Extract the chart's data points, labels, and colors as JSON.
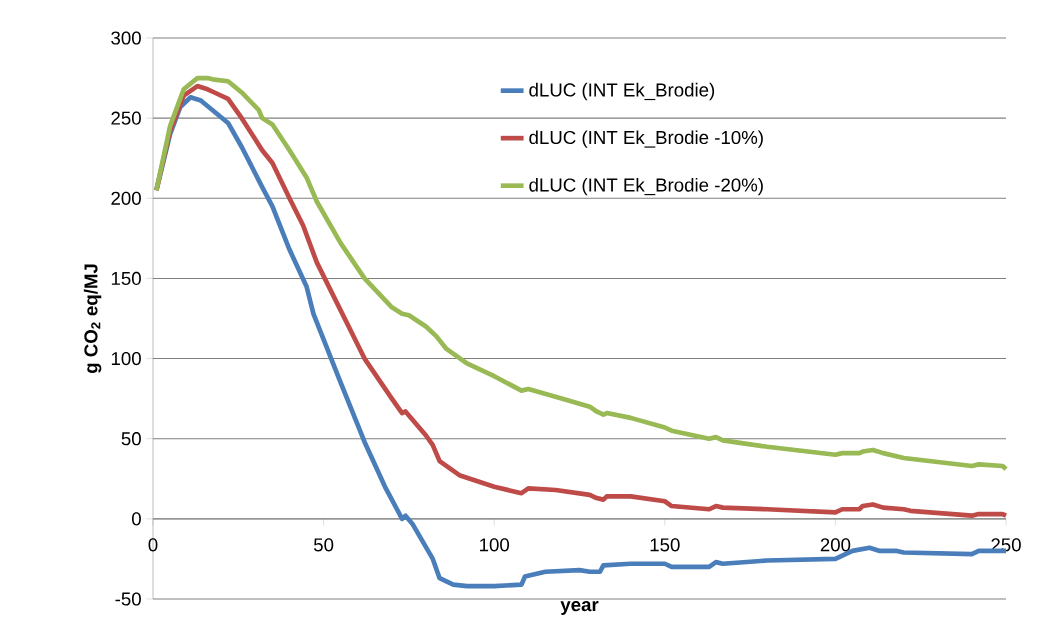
{
  "chart_data": {
    "type": "line",
    "xlabel": "year",
    "ylabel": "**g CO$_{2}$ eq/MJ**",
    "xlim": [
      0,
      250
    ],
    "ylim": [
      -50,
      300
    ],
    "xticks": [
      0,
      50,
      100,
      150,
      200,
      250
    ],
    "yticks": [
      -50,
      0,
      50,
      100,
      150,
      200,
      250,
      300
    ],
    "grid": "y",
    "legend": "top right",
    "line_style": "solid",
    "marker": "none",
    "series": [
      {
        "name": "dLUC (INT Ek_Brodie)",
        "color": "#4a7ebb",
        "x": [
          1,
          5,
          8,
          11,
          14,
          18,
          22,
          26,
          32,
          35,
          40,
          45,
          47,
          55,
          62,
          68,
          73,
          74,
          76,
          82,
          84,
          88,
          92,
          100,
          108,
          109,
          115,
          125,
          128,
          131,
          132,
          140,
          150,
          152,
          163,
          165,
          167,
          180,
          200,
          205,
          210,
          213,
          218,
          220,
          240,
          242,
          250
        ],
        "values": [
          205,
          240,
          257,
          263,
          261,
          254,
          247,
          232,
          207,
          195,
          168,
          145,
          128,
          85,
          48,
          20,
          0,
          2,
          -3,
          -25,
          -37,
          -41,
          -42,
          -42,
          -41,
          -36,
          -33,
          -32,
          -33,
          -33,
          -29,
          -28,
          -28,
          -30,
          -30,
          -27,
          -28,
          -26,
          -25,
          -20,
          -18,
          -20,
          -20,
          -21,
          -22,
          -20,
          -20
        ]
      },
      {
        "name": "dLUC (INT Ek_Brodie -10%)",
        "color": "#be4b48",
        "x": [
          1,
          5,
          9,
          13,
          16,
          18,
          22,
          26,
          32,
          35,
          40,
          44,
          48,
          55,
          62,
          70,
          73,
          74,
          80,
          82,
          84,
          90,
          100,
          108,
          110,
          118,
          128,
          130,
          132,
          133,
          140,
          150,
          152,
          163,
          165,
          167,
          180,
          200,
          202,
          207,
          208,
          211,
          214,
          220,
          222,
          240,
          242,
          249,
          250
        ],
        "values": [
          205,
          242,
          264,
          270,
          268,
          266,
          262,
          250,
          230,
          222,
          200,
          183,
          160,
          130,
          100,
          75,
          66,
          67,
          52,
          46,
          36,
          27,
          20,
          16,
          19,
          18,
          15,
          13,
          12,
          14,
          14,
          11,
          8,
          6,
          8,
          7,
          6,
          4,
          6,
          6,
          8,
          9,
          7,
          6,
          5,
          2,
          3,
          3,
          2
        ]
      },
      {
        "name": "dLUC (INT Ek_Brodie -20%)",
        "color": "#98b954",
        "x": [
          1,
          5,
          9,
          13,
          16,
          18,
          22,
          26,
          31,
          32,
          35,
          40,
          45,
          48,
          55,
          62,
          70,
          73,
          75,
          80,
          83,
          86,
          92,
          100,
          108,
          110,
          120,
          128,
          130,
          132,
          133,
          140,
          150,
          152,
          163,
          165,
          167,
          180,
          200,
          202,
          207,
          208,
          211,
          214,
          220,
          240,
          242,
          249,
          250
        ],
        "values": [
          205,
          245,
          268,
          275,
          275,
          274,
          273,
          266,
          255,
          250,
          246,
          230,
          213,
          198,
          172,
          150,
          132,
          128,
          127,
          120,
          114,
          106,
          97,
          89,
          80,
          81,
          75,
          70,
          67,
          65,
          66,
          63,
          57,
          55,
          50,
          51,
          49,
          45,
          40,
          41,
          41,
          42,
          43,
          41,
          38,
          33,
          34,
          33,
          31
        ]
      }
    ]
  }
}
